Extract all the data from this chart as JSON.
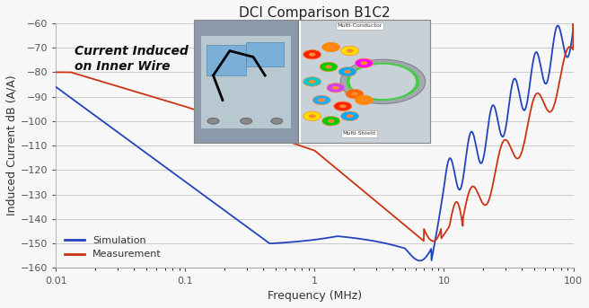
{
  "title": "DCI Comparison B1C2",
  "xlabel": "Frequency (MHz)",
  "ylabel": "Induced Current dB (A/A)",
  "xlim_log": [
    0.01,
    100
  ],
  "ylim": [
    -160,
    -60
  ],
  "yticks": [
    -160,
    -150,
    -140,
    -130,
    -120,
    -110,
    -100,
    -90,
    -80,
    -70,
    -60
  ],
  "bg_color": "#f7f7f7",
  "sim_color": "#2244bb",
  "meas_color": "#cc3311",
  "annotation_text": "Current Induced\non Inner Wire",
  "legend_sim": "Simulation",
  "legend_meas": "Measurement",
  "title_fontsize": 11,
  "axis_label_fontsize": 9,
  "tick_fontsize": 8,
  "legend_fontsize": 8,
  "annotation_fontsize": 10
}
